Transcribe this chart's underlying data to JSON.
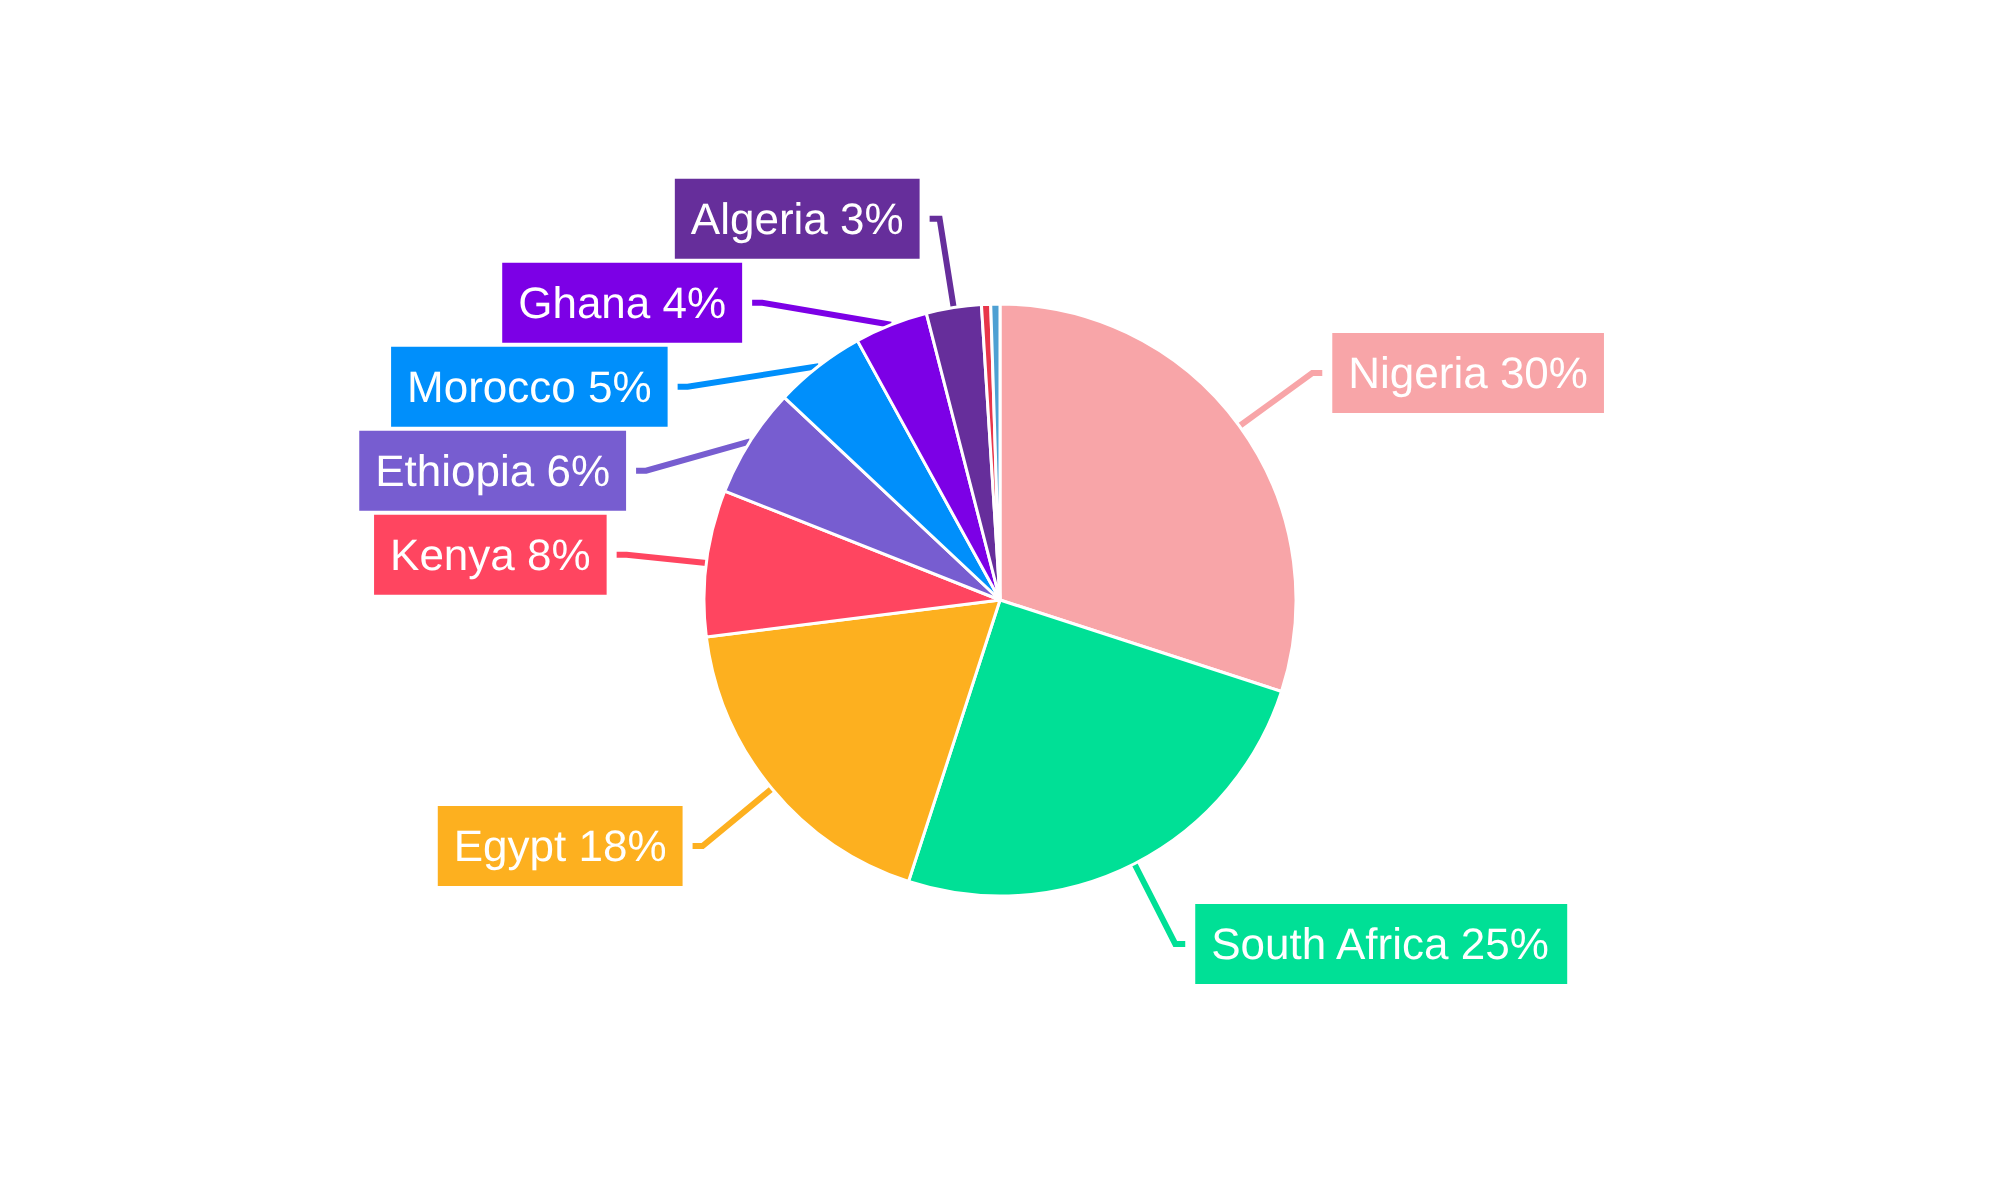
{
  "chart_data": {
    "type": "pie",
    "categories": [
      "Nigeria",
      "South Africa",
      "Egypt",
      "Kenya",
      "Ethiopia",
      "Morocco",
      "Ghana",
      "Algeria",
      null,
      null
    ],
    "values": [
      30,
      25,
      18,
      8,
      6,
      5,
      4,
      3,
      0.5,
      0.5
    ],
    "colors": [
      "#f8a5a8",
      "#00e096",
      "#fdb01f",
      "#ff4560",
      "#775dd0",
      "#008ffb",
      "#7c00e6",
      "#662e9b",
      "#e8364a",
      "#4ea0d3"
    ],
    "value_labels": [
      "30%",
      "25%",
      "18%",
      "8%",
      "6%",
      "5%",
      "4%",
      "3%",
      null,
      null
    ],
    "legend": false
  }
}
